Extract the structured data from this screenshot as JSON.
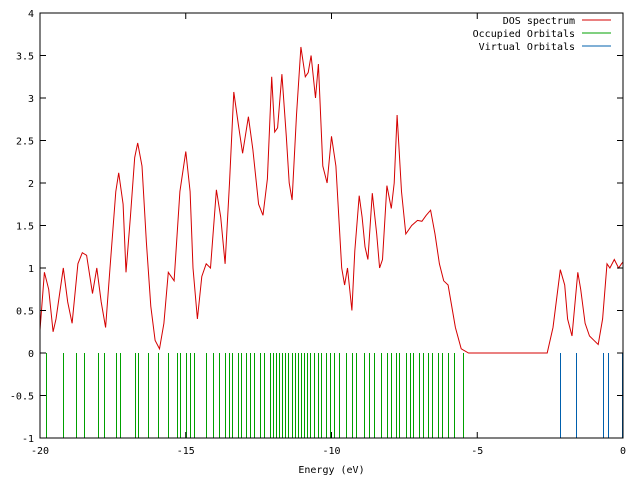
{
  "chart_data": {
    "type": "line",
    "title": "",
    "xlabel": "Energy (eV)",
    "ylabel": "",
    "xlim": [
      -20,
      0
    ],
    "ylim": [
      -1,
      4
    ],
    "grid": false,
    "legend_position": "top-right",
    "x_ticks": [
      "-20",
      "-15",
      "-10",
      "-5",
      "0"
    ],
    "x_tick_values": [
      -20,
      -15,
      -10,
      -5,
      0
    ],
    "y_ticks": [
      "-1",
      "-0.5",
      "0",
      "0.5",
      "1",
      "1.5",
      "2",
      "2.5",
      "3",
      "3.5",
      "4"
    ],
    "y_tick_values": [
      -1,
      -0.5,
      0,
      0.5,
      1,
      1.5,
      2,
      2.5,
      3,
      3.5,
      4
    ],
    "series": [
      {
        "name": "DOS spectrum",
        "color": "#d40000",
        "points": [
          [
            -20.0,
            0.27
          ],
          [
            -19.85,
            0.95
          ],
          [
            -19.7,
            0.75
          ],
          [
            -19.55,
            0.25
          ],
          [
            -19.45,
            0.4
          ],
          [
            -19.2,
            1.0
          ],
          [
            -19.05,
            0.6
          ],
          [
            -18.9,
            0.35
          ],
          [
            -18.7,
            1.05
          ],
          [
            -18.55,
            1.18
          ],
          [
            -18.4,
            1.15
          ],
          [
            -18.2,
            0.7
          ],
          [
            -18.05,
            1.0
          ],
          [
            -17.9,
            0.6
          ],
          [
            -17.75,
            0.3
          ],
          [
            -17.6,
            1.0
          ],
          [
            -17.4,
            1.9
          ],
          [
            -17.3,
            2.12
          ],
          [
            -17.15,
            1.75
          ],
          [
            -17.05,
            0.95
          ],
          [
            -16.9,
            1.6
          ],
          [
            -16.75,
            2.3
          ],
          [
            -16.65,
            2.47
          ],
          [
            -16.5,
            2.2
          ],
          [
            -16.35,
            1.3
          ],
          [
            -16.2,
            0.55
          ],
          [
            -16.05,
            0.15
          ],
          [
            -15.9,
            0.05
          ],
          [
            -15.75,
            0.35
          ],
          [
            -15.6,
            0.95
          ],
          [
            -15.4,
            0.85
          ],
          [
            -15.2,
            1.9
          ],
          [
            -15.0,
            2.37
          ],
          [
            -14.85,
            1.9
          ],
          [
            -14.75,
            1.0
          ],
          [
            -14.6,
            0.4
          ],
          [
            -14.45,
            0.9
          ],
          [
            -14.3,
            1.05
          ],
          [
            -14.15,
            1.0
          ],
          [
            -13.95,
            1.92
          ],
          [
            -13.8,
            1.6
          ],
          [
            -13.65,
            1.05
          ],
          [
            -13.5,
            2.0
          ],
          [
            -13.35,
            3.07
          ],
          [
            -13.2,
            2.7
          ],
          [
            -13.05,
            2.35
          ],
          [
            -12.85,
            2.78
          ],
          [
            -12.7,
            2.4
          ],
          [
            -12.5,
            1.75
          ],
          [
            -12.35,
            1.62
          ],
          [
            -12.2,
            2.05
          ],
          [
            -12.05,
            3.25
          ],
          [
            -11.95,
            2.6
          ],
          [
            -11.85,
            2.65
          ],
          [
            -11.7,
            3.28
          ],
          [
            -11.55,
            2.55
          ],
          [
            -11.45,
            2.0
          ],
          [
            -11.35,
            1.8
          ],
          [
            -11.2,
            2.8
          ],
          [
            -11.05,
            3.6
          ],
          [
            -10.9,
            3.25
          ],
          [
            -10.8,
            3.3
          ],
          [
            -10.7,
            3.5
          ],
          [
            -10.55,
            3.0
          ],
          [
            -10.45,
            3.4
          ],
          [
            -10.3,
            2.2
          ],
          [
            -10.15,
            2.0
          ],
          [
            -10.0,
            2.55
          ],
          [
            -9.85,
            2.2
          ],
          [
            -9.65,
            1.0
          ],
          [
            -9.55,
            0.8
          ],
          [
            -9.45,
            1.0
          ],
          [
            -9.3,
            0.5
          ],
          [
            -9.2,
            1.2
          ],
          [
            -9.05,
            1.85
          ],
          [
            -8.95,
            1.6
          ],
          [
            -8.85,
            1.25
          ],
          [
            -8.75,
            1.1
          ],
          [
            -8.6,
            1.88
          ],
          [
            -8.45,
            1.4
          ],
          [
            -8.35,
            1.0
          ],
          [
            -8.25,
            1.1
          ],
          [
            -8.1,
            1.97
          ],
          [
            -7.95,
            1.7
          ],
          [
            -7.85,
            2.0
          ],
          [
            -7.75,
            2.8
          ],
          [
            -7.6,
            1.9
          ],
          [
            -7.45,
            1.4
          ],
          [
            -7.25,
            1.5
          ],
          [
            -7.05,
            1.56
          ],
          [
            -6.9,
            1.55
          ],
          [
            -6.75,
            1.62
          ],
          [
            -6.6,
            1.68
          ],
          [
            -6.45,
            1.4
          ],
          [
            -6.3,
            1.05
          ],
          [
            -6.15,
            0.85
          ],
          [
            -6.0,
            0.8
          ],
          [
            -5.9,
            0.6
          ],
          [
            -5.75,
            0.3
          ],
          [
            -5.55,
            0.05
          ],
          [
            -5.3,
            0.0
          ],
          [
            -3.5,
            0.0
          ],
          [
            -2.6,
            0.0
          ],
          [
            -2.4,
            0.3
          ],
          [
            -2.15,
            0.98
          ],
          [
            -2.0,
            0.8
          ],
          [
            -1.9,
            0.4
          ],
          [
            -1.75,
            0.2
          ],
          [
            -1.55,
            0.95
          ],
          [
            -1.45,
            0.75
          ],
          [
            -1.3,
            0.35
          ],
          [
            -1.15,
            0.2
          ],
          [
            -1.0,
            0.15
          ],
          [
            -0.85,
            0.1
          ],
          [
            -0.7,
            0.4
          ],
          [
            -0.55,
            1.05
          ],
          [
            -0.45,
            1.0
          ],
          [
            -0.3,
            1.1
          ],
          [
            -0.15,
            1.0
          ],
          [
            -0.05,
            1.05
          ],
          [
            0.0,
            1.07
          ]
        ]
      },
      {
        "name": "Occupied Orbitals",
        "color": "#00a000",
        "energies": [
          -19.8,
          -19.2,
          -18.75,
          -18.5,
          -18.0,
          -17.8,
          -17.4,
          -17.25,
          -16.75,
          -16.65,
          -16.3,
          -15.95,
          -15.6,
          -15.3,
          -15.2,
          -15.0,
          -14.85,
          -14.7,
          -14.3,
          -14.05,
          -13.85,
          -13.65,
          -13.5,
          -13.4,
          -13.2,
          -13.1,
          -12.95,
          -12.8,
          -12.65,
          -12.45,
          -12.3,
          -12.1,
          -12.0,
          -11.9,
          -11.8,
          -11.7,
          -11.6,
          -11.5,
          -11.35,
          -11.25,
          -11.15,
          -11.05,
          -10.95,
          -10.85,
          -10.75,
          -10.6,
          -10.45,
          -10.35,
          -10.2,
          -10.05,
          -9.9,
          -9.75,
          -9.5,
          -9.3,
          -9.15,
          -8.9,
          -8.7,
          -8.55,
          -8.3,
          -8.1,
          -7.95,
          -7.8,
          -7.7,
          -7.45,
          -7.3,
          -7.2,
          -7.0,
          -6.85,
          -6.7,
          -6.55,
          -6.35,
          -6.2,
          -6.0,
          -5.8,
          -5.5
        ]
      },
      {
        "name": "Virtual Orbitals",
        "color": "#0060ad",
        "energies": [
          -2.15,
          -1.6,
          -0.7,
          -0.5,
          -0.05
        ]
      }
    ]
  }
}
